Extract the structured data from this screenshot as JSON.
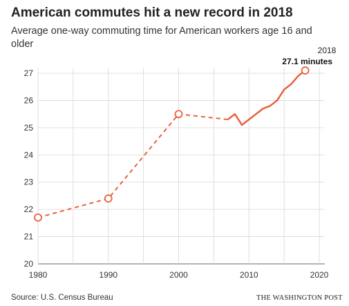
{
  "header": {
    "title": "American commutes hit a new record in 2018",
    "subtitle": "Average one-way commuting time for American workers age 16 and older"
  },
  "footer": {
    "source": "Source: U.S. Census Bureau",
    "credit": "THE WASHINGTON POST"
  },
  "chart_data": {
    "type": "line",
    "title": "American commutes hit a new record in 2018",
    "subtitle": "Average one-way commuting time for American workers age 16 and older",
    "xlabel": "",
    "ylabel": "",
    "xlim": [
      1980,
      2020
    ],
    "ylim": [
      20,
      27
    ],
    "x_ticks": [
      1980,
      1990,
      2000,
      2010,
      2020
    ],
    "y_ticks": [
      20,
      21,
      22,
      23,
      24,
      25,
      26,
      27
    ],
    "grid": "vertical",
    "color": "#e8603c",
    "census_points": {
      "x": [
        1980,
        1990,
        2000
      ],
      "values": [
        21.7,
        22.4,
        25.5
      ]
    },
    "dashed_series": {
      "x": [
        1980,
        1990,
        2000,
        2007
      ],
      "values": [
        21.7,
        22.4,
        25.5,
        25.3
      ]
    },
    "annual_series": {
      "x": [
        2007,
        2008,
        2009,
        2010,
        2011,
        2012,
        2013,
        2014,
        2015,
        2016,
        2017,
        2018
      ],
      "values": [
        25.3,
        25.5,
        25.1,
        25.3,
        25.5,
        25.7,
        25.8,
        26.0,
        26.4,
        26.6,
        26.9,
        27.1
      ]
    },
    "highlight": {
      "x": 2018,
      "value": 27.1
    },
    "annotation": {
      "year": "2018",
      "value": "27.1 minutes"
    }
  }
}
